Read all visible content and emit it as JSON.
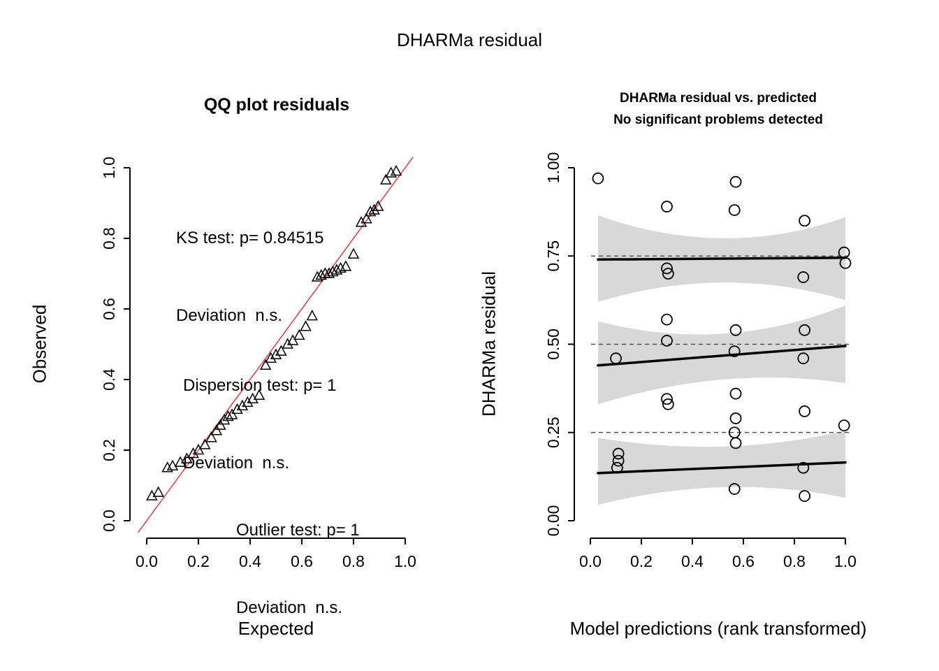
{
  "figure": {
    "title": "DHARMa residual"
  },
  "chart_data": [
    {
      "type": "scatter",
      "title": "QQ plot residuals",
      "xlabel": "Expected",
      "ylabel": "Observed",
      "xlim": [
        0,
        1
      ],
      "ylim": [
        0,
        1
      ],
      "xticks": [
        0,
        0.2,
        0.4,
        0.6,
        0.8,
        1.0
      ],
      "xtick_labels": [
        "0.0",
        "0.2",
        "0.4",
        "0.6",
        "0.8",
        "1.0"
      ],
      "yticks": [
        0,
        0.2,
        0.4,
        0.6,
        0.8,
        1.0
      ],
      "ytick_labels": [
        "0.0",
        "0.2",
        "0.4",
        "0.6",
        "0.8",
        "1.0"
      ],
      "marker": "open-triangle",
      "reference_line": {
        "x0": -0.033,
        "y0": -0.033,
        "x1": 1.03,
        "y1": 1.03,
        "color": "#e8424d"
      },
      "annotations": [
        {
          "name": "ks-test",
          "lines": [
            "KS test: p= 0.84515",
            "Deviation  n.s."
          ]
        },
        {
          "name": "dispersion-test",
          "lines": [
            "Dispersion test: p= 1",
            "Deviation  n.s."
          ]
        },
        {
          "name": "outlier-test",
          "lines": [
            "Outlier test: p= 1",
            "Deviation  n.s."
          ]
        }
      ],
      "points": [
        [
          0.02,
          0.07
        ],
        [
          0.045,
          0.08
        ],
        [
          0.08,
          0.15
        ],
        [
          0.1,
          0.155
        ],
        [
          0.13,
          0.165
        ],
        [
          0.155,
          0.175
        ],
        [
          0.18,
          0.19
        ],
        [
          0.2,
          0.2
        ],
        [
          0.225,
          0.215
        ],
        [
          0.25,
          0.235
        ],
        [
          0.27,
          0.255
        ],
        [
          0.285,
          0.27
        ],
        [
          0.3,
          0.285
        ],
        [
          0.315,
          0.295
        ],
        [
          0.33,
          0.3
        ],
        [
          0.35,
          0.315
        ],
        [
          0.37,
          0.325
        ],
        [
          0.39,
          0.335
        ],
        [
          0.41,
          0.345
        ],
        [
          0.435,
          0.355
        ],
        [
          0.46,
          0.44
        ],
        [
          0.48,
          0.46
        ],
        [
          0.5,
          0.47
        ],
        [
          0.52,
          0.48
        ],
        [
          0.545,
          0.5
        ],
        [
          0.565,
          0.51
        ],
        [
          0.59,
          0.525
        ],
        [
          0.615,
          0.55
        ],
        [
          0.64,
          0.58
        ],
        [
          0.66,
          0.69
        ],
        [
          0.675,
          0.695
        ],
        [
          0.69,
          0.7
        ],
        [
          0.705,
          0.7
        ],
        [
          0.72,
          0.705
        ],
        [
          0.735,
          0.71
        ],
        [
          0.75,
          0.715
        ],
        [
          0.77,
          0.72
        ],
        [
          0.8,
          0.755
        ],
        [
          0.83,
          0.845
        ],
        [
          0.85,
          0.855
        ],
        [
          0.865,
          0.875
        ],
        [
          0.88,
          0.88
        ],
        [
          0.895,
          0.89
        ],
        [
          0.925,
          0.965
        ],
        [
          0.945,
          0.985
        ],
        [
          0.965,
          0.99
        ]
      ]
    },
    {
      "type": "scatter",
      "title_lines": [
        "DHARMa residual vs. predicted",
        "No significant problems detected"
      ],
      "xlabel": "Model predictions (rank transformed)",
      "ylabel": "DHARMa residual",
      "xlim": [
        0,
        1
      ],
      "ylim": [
        0,
        1
      ],
      "xticks": [
        0,
        0.2,
        0.4,
        0.6,
        0.8,
        1.0
      ],
      "xtick_labels": [
        "0.0",
        "0.2",
        "0.4",
        "0.6",
        "0.8",
        "1.0"
      ],
      "yticks": [
        0,
        0.25,
        0.5,
        0.75,
        1.0
      ],
      "ytick_labels": [
        "0.00",
        "0.25",
        "0.50",
        "0.75",
        "1.00"
      ],
      "marker": "open-circle",
      "colors": {
        "band": "#d8d8d8",
        "dashed": "#3a3a3a",
        "line": "#000000",
        "point": "#000000"
      },
      "dashed_hlines": [
        0.25,
        0.5,
        0.75
      ],
      "quantile_lines": [
        {
          "quantile": 0.25,
          "x": [
            0.03,
            1.0
          ],
          "y": [
            0.135,
            0.165
          ]
        },
        {
          "quantile": 0.5,
          "x": [
            0.03,
            1.0
          ],
          "y": [
            0.44,
            0.495
          ]
        },
        {
          "quantile": 0.75,
          "x": [
            0.03,
            1.0
          ],
          "y": [
            0.74,
            0.745
          ]
        }
      ],
      "confidence_bands": [
        {
          "quantile": 0.25,
          "x": [
            0.03,
            0.52,
            1.0
          ],
          "hi": [
            0.235,
            0.21,
            0.255
          ],
          "lo": [
            0.045,
            0.095,
            0.065
          ]
        },
        {
          "quantile": 0.5,
          "x": [
            0.03,
            0.52,
            1.0
          ],
          "hi": [
            0.565,
            0.53,
            0.61
          ],
          "lo": [
            0.33,
            0.4,
            0.39
          ]
        },
        {
          "quantile": 0.75,
          "x": [
            0.03,
            0.52,
            1.0
          ],
          "hi": [
            0.865,
            0.8,
            0.86
          ],
          "lo": [
            0.62,
            0.675,
            0.625
          ]
        }
      ],
      "points": [
        [
          0.03,
          0.97
        ],
        [
          0.1,
          0.46
        ],
        [
          0.11,
          0.19
        ],
        [
          0.11,
          0.17
        ],
        [
          0.105,
          0.15
        ],
        [
          0.3,
          0.89
        ],
        [
          0.3,
          0.715
        ],
        [
          0.305,
          0.7
        ],
        [
          0.3,
          0.57
        ],
        [
          0.3,
          0.51
        ],
        [
          0.3,
          0.345
        ],
        [
          0.305,
          0.33
        ],
        [
          0.57,
          0.96
        ],
        [
          0.565,
          0.88
        ],
        [
          0.57,
          0.54
        ],
        [
          0.565,
          0.48
        ],
        [
          0.57,
          0.36
        ],
        [
          0.57,
          0.29
        ],
        [
          0.565,
          0.25
        ],
        [
          0.57,
          0.22
        ],
        [
          0.565,
          0.09
        ],
        [
          0.84,
          0.85
        ],
        [
          0.835,
          0.69
        ],
        [
          0.84,
          0.54
        ],
        [
          0.835,
          0.46
        ],
        [
          0.84,
          0.31
        ],
        [
          0.835,
          0.15
        ],
        [
          0.84,
          0.07
        ],
        [
          0.995,
          0.76
        ],
        [
          1.0,
          0.73
        ],
        [
          0.995,
          0.27
        ]
      ]
    }
  ]
}
